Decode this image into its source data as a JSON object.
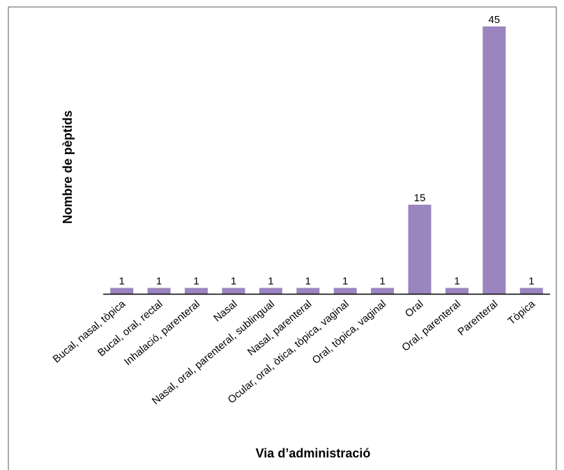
{
  "chart_data": {
    "type": "bar",
    "title": "",
    "xlabel": "Via d’administració",
    "ylabel": "Nombre de pèptids",
    "categories": [
      "Bucal, nasal, tòpica",
      "Bucal, oral, rectal",
      "Inhalació, parenteral",
      "Nasal",
      "Nasal, oral, parenteral, sublingual",
      "Nasal, parenteral",
      "Ocular, oral, òtica, tòpica, vaginal",
      "Oral, tòpica, vaginal",
      "Oral",
      "Oral, parenteral",
      "Parenteral",
      "Tòpica"
    ],
    "values": [
      1,
      1,
      1,
      1,
      1,
      1,
      1,
      1,
      15,
      1,
      45,
      1
    ],
    "ylim": [
      0,
      45
    ],
    "grid": false,
    "legend": "none",
    "bar_color": "#9b85bf",
    "axis_color": "#000000"
  }
}
